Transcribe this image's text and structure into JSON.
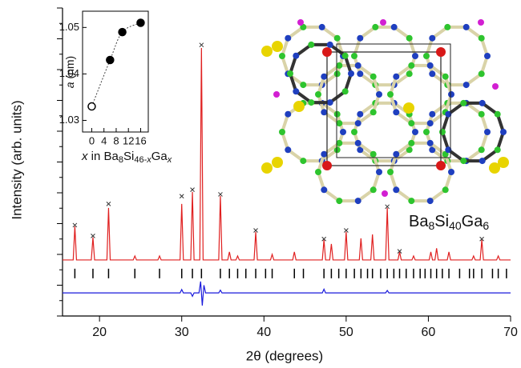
{
  "chart_data": [
    {
      "type": "line",
      "xlabel": "2θ (degrees)",
      "ylabel": "Intensity (arb. units)",
      "xlim": [
        15.5,
        70
      ],
      "xticks": [
        20,
        30,
        40,
        50,
        60,
        70
      ],
      "ylim": [
        0,
        100
      ],
      "yticks": [
        0,
        5,
        10,
        15,
        20,
        25,
        30,
        35,
        40,
        45,
        50,
        55,
        60,
        65,
        70,
        75,
        80,
        85,
        90,
        95,
        100
      ],
      "series": [
        {
          "style": "line",
          "color": "#e02020",
          "x": [
            15.5,
            16.8,
            17.0,
            17.2,
            19.0,
            19.2,
            19.4,
            20.9,
            21.1,
            21.3,
            24.1,
            24.3,
            24.5,
            27.1,
            27.3,
            27.5,
            29.8,
            30.0,
            30.2,
            31.1,
            31.3,
            31.5,
            32.2,
            32.4,
            32.6,
            34.5,
            34.7,
            34.9,
            35.6,
            35.8,
            36.0,
            36.6,
            36.8,
            37.0,
            38.8,
            39.0,
            39.2,
            40.8,
            41.0,
            41.2,
            43.5,
            43.7,
            43.9,
            47.1,
            47.3,
            47.5,
            48.0,
            48.2,
            48.4,
            49.8,
            50.0,
            50.2,
            51.6,
            51.8,
            52.0,
            53.0,
            53.2,
            53.4,
            54.8,
            55.0,
            55.2,
            56.3,
            56.5,
            56.7,
            58.0,
            58.2,
            58.4,
            60.1,
            60.3,
            60.5,
            60.8,
            61.0,
            61.2,
            62.3,
            62.5,
            62.7,
            65.3,
            65.5,
            65.7,
            66.3,
            66.5,
            66.7,
            68.3,
            68.5,
            68.7,
            70
          ],
          "values": [
            18.2,
            18.2,
            29.1,
            18.2,
            18.2,
            25.5,
            18.2,
            18.2,
            35.1,
            18.2,
            18.2,
            19.5,
            18.2,
            18.2,
            19.5,
            18.2,
            18.2,
            36.4,
            18.2,
            18.2,
            40.3,
            18.2,
            18.2,
            87,
            18.2,
            18.2,
            39,
            18.2,
            18.2,
            20.8,
            18.2,
            18.2,
            19.5,
            18.2,
            18.2,
            27.3,
            18.2,
            18.2,
            20,
            18.2,
            18.2,
            20.8,
            18.2,
            18.2,
            24.7,
            18.2,
            18.2,
            23.4,
            18.2,
            18.2,
            27.3,
            18.2,
            18.2,
            25.2,
            18.2,
            18.2,
            26.5,
            18.2,
            18.2,
            35.1,
            18.2,
            18.2,
            20.8,
            18.2,
            18.2,
            19.5,
            18.2,
            18.2,
            20.8,
            18.2,
            18.2,
            22,
            18.2,
            18.2,
            20.8,
            18.2,
            18.2,
            19.5,
            18.2,
            18.2,
            24.7,
            18.2,
            18.2,
            19.5,
            18.2,
            18.2
          ]
        },
        {
          "style": "cross",
          "color": "#333333",
          "x": [
            17.0,
            19.2,
            21.1,
            30.0,
            31.3,
            32.4,
            34.7,
            39.0,
            47.3,
            50.0,
            55.0,
            56.5,
            66.5
          ],
          "values": [
            29.5,
            26,
            36.4,
            38.9,
            41,
            88,
            39.5,
            27.8,
            25,
            27.8,
            35.5,
            21,
            25
          ]
        },
        {
          "style": "line",
          "color": "#1a1adc",
          "x": [
            15.5,
            29.8,
            30.0,
            30.2,
            31.1,
            31.3,
            31.5,
            32.1,
            32.3,
            32.5,
            32.7,
            32.9,
            34.5,
            34.7,
            34.9,
            47.1,
            47.3,
            47.5,
            54.8,
            55.0,
            55.2,
            70
          ],
          "values": [
            7.5,
            7.5,
            8.6,
            7.5,
            7.5,
            6.4,
            7.5,
            7.5,
            11.2,
            3.4,
            10,
            7.5,
            7.5,
            8.4,
            7.5,
            7.5,
            8.7,
            7.5,
            7.5,
            8.3,
            7.5,
            7.5
          ]
        }
      ],
      "reflections": {
        "level": 13.8,
        "color": "#000000",
        "x": [
          17.0,
          19.2,
          21.1,
          24.3,
          27.3,
          30.0,
          31.3,
          32.4,
          34.7,
          35.8,
          36.8,
          37.8,
          39.0,
          40.2,
          41.0,
          43.7,
          44.8,
          47.3,
          48.2,
          49.1,
          50.0,
          51.0,
          51.8,
          52.6,
          53.2,
          54.2,
          55.0,
          55.8,
          56.5,
          57.3,
          58.2,
          59.0,
          59.6,
          60.3,
          61.0,
          61.7,
          62.5,
          63.8,
          65.0,
          65.5,
          66.5,
          67.8,
          68.5,
          69.5
        ]
      },
      "annotation": [
        "Ba",
        "8",
        "Si",
        "40",
        "Ga",
        "6"
      ]
    },
    {
      "type": "scatter",
      "xlabel": [
        "x",
        " in Ba",
        "8",
        "Si",
        "46-",
        "x",
        "Ga",
        "x"
      ],
      "ylabel": [
        "a",
        " (nm)"
      ],
      "xlim": [
        -3,
        18.5
      ],
      "xticks": [
        0,
        4,
        8,
        12,
        16
      ],
      "ylim": [
        1.0275,
        1.0535
      ],
      "yticks": [
        1.03,
        1.04,
        1.05
      ],
      "x": [
        0,
        6,
        10,
        16
      ],
      "values": [
        1.033,
        1.043,
        1.049,
        1.051
      ],
      "filled": [
        false,
        true,
        true,
        true
      ],
      "color": "#000000"
    }
  ]
}
